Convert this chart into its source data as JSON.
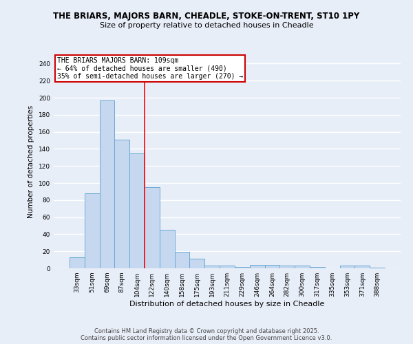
{
  "title": "THE BRIARS, MAJORS BARN, CHEADLE, STOKE-ON-TRENT, ST10 1PY",
  "subtitle": "Size of property relative to detached houses in Cheadle",
  "xlabel": "Distribution of detached houses by size in Cheadle",
  "ylabel": "Number of detached properties",
  "categories": [
    "33sqm",
    "51sqm",
    "69sqm",
    "87sqm",
    "104sqm",
    "122sqm",
    "140sqm",
    "158sqm",
    "175sqm",
    "193sqm",
    "211sqm",
    "229sqm",
    "246sqm",
    "264sqm",
    "282sqm",
    "300sqm",
    "317sqm",
    "335sqm",
    "353sqm",
    "371sqm",
    "388sqm"
  ],
  "values": [
    13,
    88,
    197,
    151,
    135,
    95,
    45,
    19,
    11,
    3,
    3,
    2,
    4,
    4,
    3,
    3,
    2,
    0,
    3,
    3,
    1
  ],
  "bar_color": "#c5d8f0",
  "bar_edgecolor": "#6aaad4",
  "background_color": "#e8eef8",
  "grid_color": "#ffffff",
  "red_line_x": 4.5,
  "annotation_title": "THE BRIARS MAJORS BARN: 109sqm",
  "annotation_line1": "← 64% of detached houses are smaller (490)",
  "annotation_line2": "35% of semi-detached houses are larger (270) →",
  "annotation_box_color": "#ffffff",
  "annotation_border_color": "#cc0000",
  "footer1": "Contains HM Land Registry data © Crown copyright and database right 2025.",
  "footer2": "Contains public sector information licensed under the Open Government Licence v3.0.",
  "ylim": [
    0,
    250
  ],
  "yticks": [
    0,
    20,
    40,
    60,
    80,
    100,
    120,
    140,
    160,
    180,
    200,
    220,
    240
  ]
}
